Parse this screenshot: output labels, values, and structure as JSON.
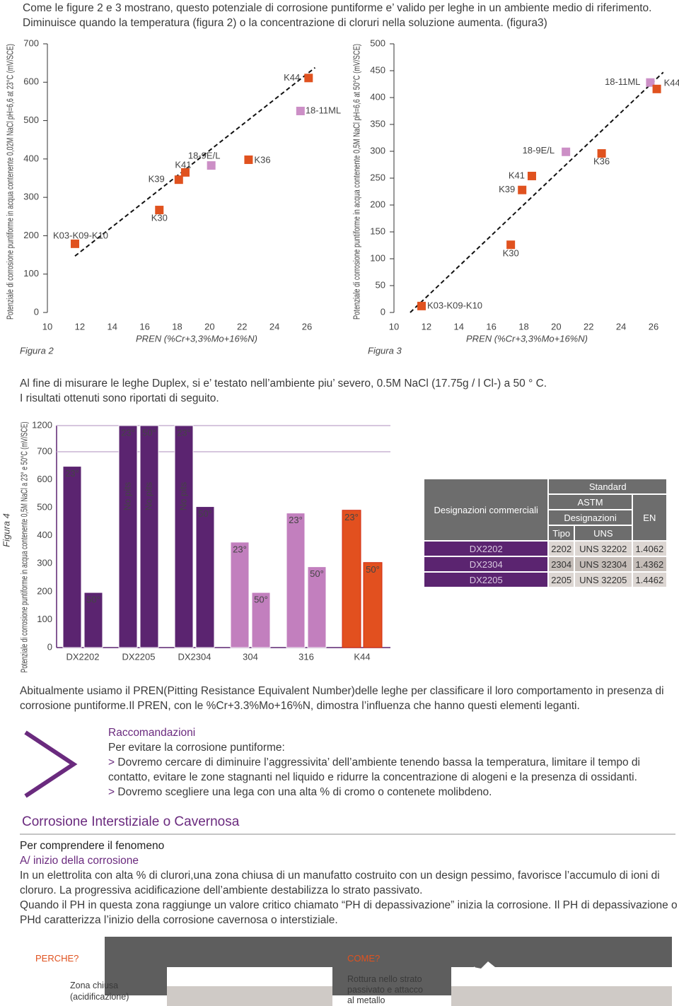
{
  "intro": {
    "lines": [
      "Come le figure 2 e 3 mostrano, questo potenziale di corrosione puntiforme e’ valido per leghe in un ambiente medio di riferimento.",
      "Diminuisce quando la temperatura (figura 2) o la concentrazione di cloruri nella soluzione aumenta. (figura3)"
    ]
  },
  "chart_data": [
    {
      "type": "scatter",
      "caption": "Figura 2",
      "x_label": "PREN (%Cr+3,3%Mo+16%N)",
      "y_label": "Potenziale di corrosione puntiforme in acqua contenente 0,02M NaCl pH=6,6 at 23°C (mV/SCE)",
      "point_labels": [
        "K03-K09-K10",
        "K30",
        "K39",
        "K41",
        "18-9E/L",
        "K36",
        "18-11ML",
        "K44"
      ],
      "x": [
        11.7,
        16.9,
        18.1,
        18.5,
        20.1,
        22.4,
        25.6,
        26.1
      ],
      "values": [
        179,
        267,
        346,
        365,
        383,
        398,
        525,
        611
      ],
      "colors": [
        "#e0521f",
        "#e0521f",
        "#e0521f",
        "#e0521f",
        "#cc8fc6",
        "#e0521f",
        "#cc8fc6",
        "#e0521f"
      ],
      "trend": {
        "x": [
          11.7,
          26.5
        ],
        "values": [
          147,
          638
        ]
      },
      "xlim": [
        10,
        26
      ],
      "xticks": [
        10,
        12,
        14,
        16,
        18,
        20,
        22,
        24,
        26
      ],
      "ylim": [
        0,
        700
      ],
      "yticks": [
        0,
        100,
        200,
        300,
        400,
        500,
        600,
        700
      ]
    },
    {
      "type": "scatter",
      "caption": "Figura 3",
      "x_label": "PREN (%Cr+3,3%Mo+16%N)",
      "y_label": "Potenziale di corrosione puntiforme in acqua contenente 0,5M NaCl pH=6,6 at 50°C (mV/SCE)",
      "point_labels": [
        "K03-K09-K10",
        "K30",
        "K39",
        "K41",
        "18-9E/L",
        "K36",
        "18-11ML",
        "K44"
      ],
      "x": [
        11.7,
        17.2,
        17.9,
        18.5,
        20.6,
        22.8,
        25.8,
        26.2
      ],
      "values": [
        12,
        126,
        228,
        254,
        299,
        296,
        428,
        416
      ],
      "colors": [
        "#e0521f",
        "#e0521f",
        "#e0521f",
        "#e0521f",
        "#cc8fc6",
        "#e0521f",
        "#cc8fc6",
        "#e0521f"
      ],
      "trend": {
        "x": [
          11,
          26.6
        ],
        "values": [
          0,
          447
        ]
      },
      "xlim": [
        10,
        26
      ],
      "xticks": [
        10,
        12,
        14,
        16,
        18,
        20,
        22,
        24,
        26
      ],
      "ylim": [
        0,
        500
      ],
      "yticks": [
        0,
        50,
        100,
        150,
        200,
        250,
        300,
        350,
        400,
        450,
        500
      ]
    },
    {
      "type": "bar",
      "caption": "Figura 4",
      "y_label": "Potenziale di corrosione puntiforme in acqua contenente 0,5M NaCl a 23° e 50°C (mV/SCE)",
      "categories": [
        "DX2202",
        "DX2205",
        "DX2304",
        "304",
        "316",
        "K44"
      ],
      "colors": [
        "#5b2470",
        "#5b2470",
        "#5b2470",
        "#c27fbe",
        "#c27fbe",
        "#e2501f"
      ],
      "series": [
        {
          "name": "23°",
          "values": [
            648,
            1200,
            1200,
            377,
            481,
            491
          ],
          "value_labels": [
            null,
            "No pits",
            "No pits",
            null,
            null,
            null
          ]
        },
        {
          "name": "50°",
          "values": [
            197,
            1200,
            504,
            197,
            289,
            304
          ],
          "value_labels": [
            null,
            "No pits",
            null,
            null,
            null,
            null
          ]
        }
      ],
      "ylim": [
        0,
        1200
      ],
      "axis_break": 700,
      "yticks": [
        0,
        100,
        200,
        300,
        400,
        500,
        600,
        700,
        1200
      ]
    }
  ],
  "intro2": {
    "lines": [
      "Al fine di misurare le leghe Duplex, si e’ testato nell’ambiente piu’ severo, 0.5M NaCl (17.75g / l Cl-) a 50 ° C.",
      "I risultati ottenuti sono riportati di seguito."
    ]
  },
  "table": {
    "header": {
      "commercial": "Designazioni commerciali",
      "standard": "Standard",
      "astm": "ASTM",
      "designazioni": "Designazioni",
      "en": "EN",
      "tipo": "Tipo",
      "uns": "UNS"
    },
    "rows": [
      [
        "DX2202",
        "2202",
        "UNS 32202",
        "1.4062"
      ],
      [
        "DX2304",
        "2304",
        "UNS 32304",
        "1.4362"
      ],
      [
        "DX2205",
        "2205",
        "UNS 32205",
        "1.4462"
      ]
    ]
  },
  "pren": "Abitualmente usiamo il PREN(Pitting Resistance Equivalent Number)delle leghe per classificare il loro comportamento in presenza di corrosione puntiforme.Il PREN, con le %Cr+3.3%Mo+16%N, dimostra l’influenza che hanno questi elementi leganti.",
  "recommendations": {
    "title": "Raccomandazioni",
    "intro": "Per evitare la corrosione puntiforme:",
    "bullet": ">",
    "items": [
      "Dovremo cercare di diminuire l’aggressivita’ dell’ambiente tenendo bassa la temperatura, limitare il tempo di contatto, evitare le zone stagnanti nel liquido e ridurre la concentrazione di alogeni e la presenza di ossidanti.",
      "Dovremo scegliere una lega con una alta % di cromo o contenete molibdeno."
    ]
  },
  "section": {
    "title": "Corrosione Interstiziale o Cavernosa",
    "subtitle": "Per comprendere il fenomeno",
    "step": "A/ inizio della corrosione",
    "paragraphs": [
      "In un elettrolita con alta % di clurori,una zona chiusa di un manufatto costruito con un design pessimo, favorisce l’accumulo di ioni di cloruro. La progressiva acidificazione dell’ambiente destabilizza lo strato passivato.",
      "Quando il PH in questa zona raggiunge un valore critico chiamato “PH di depassivazione” inizia la corrosione. Il PH di depassivazione o PHd caratterizza l’inizio della corrosione cavernosa o interstiziale."
    ]
  },
  "diagrams": [
    {
      "title": "PERCHE?",
      "caption": "Zona chiusa (acidificazione)"
    },
    {
      "title": "COME?",
      "caption": "Rottura nello strato passivato e attacco al metallo"
    }
  ]
}
